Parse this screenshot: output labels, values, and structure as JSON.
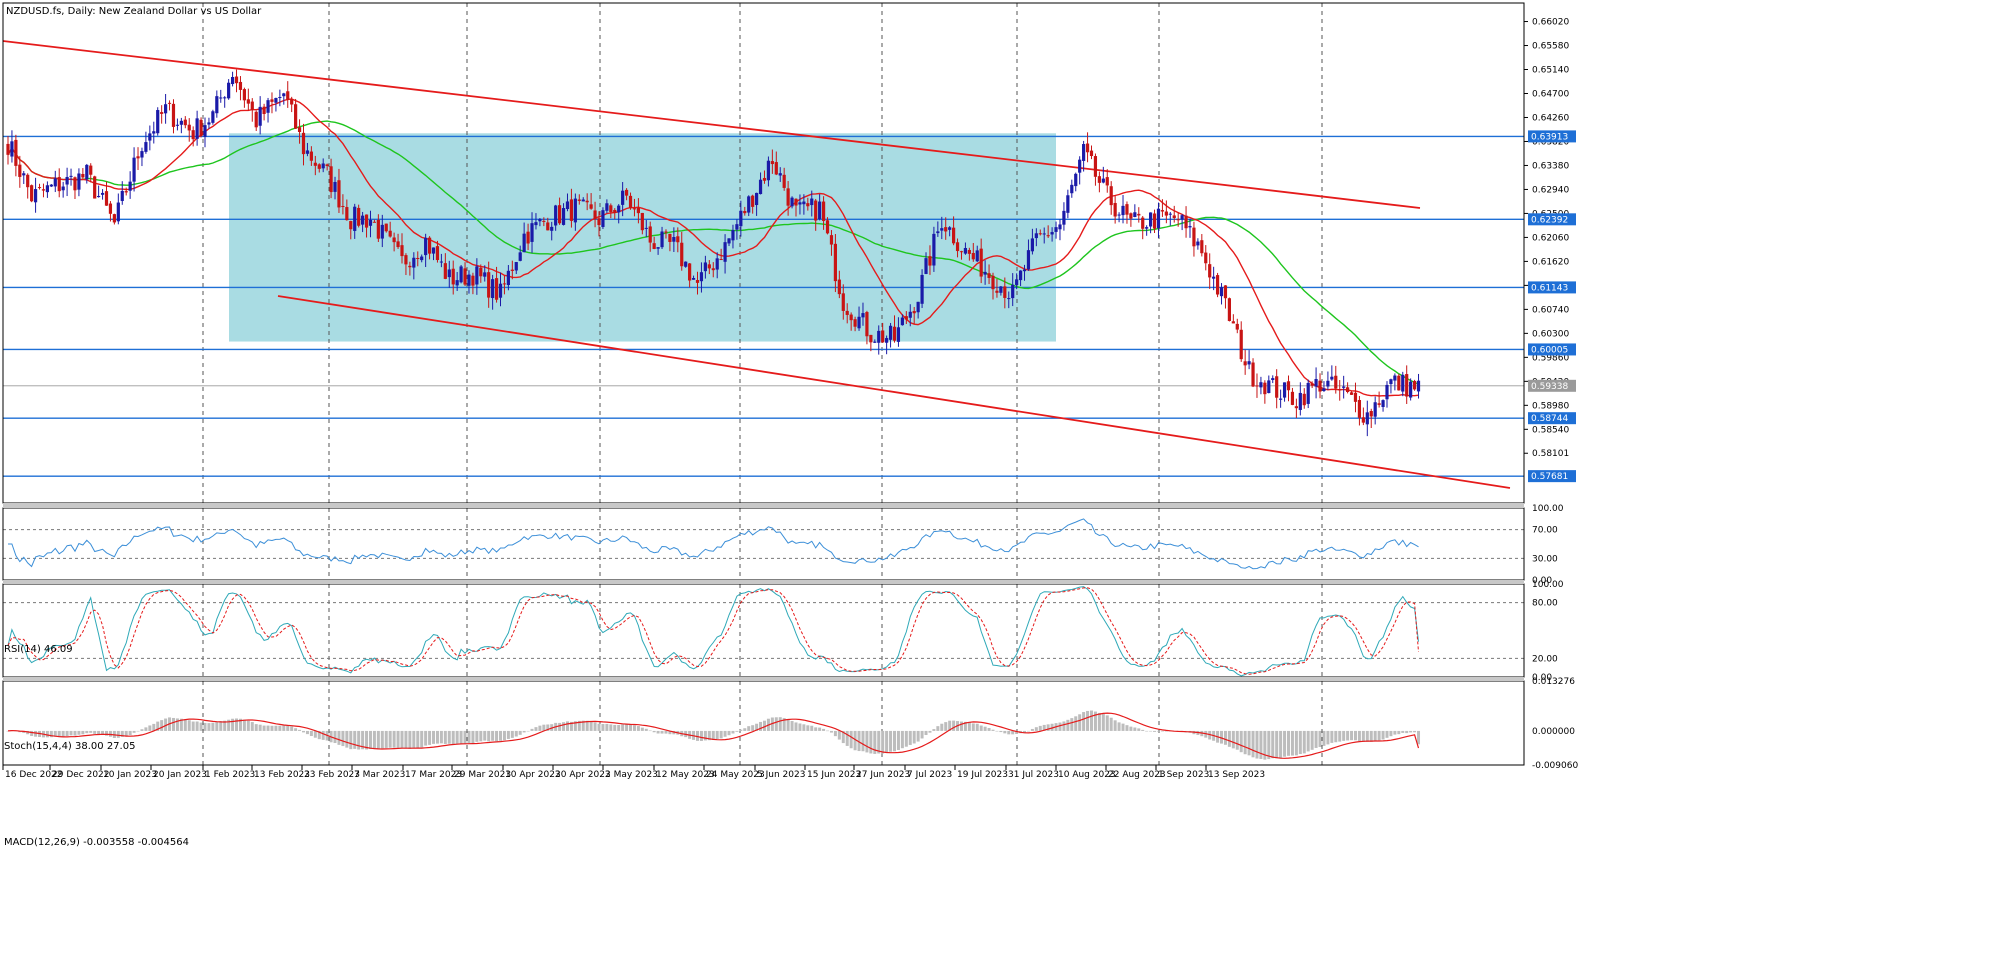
{
  "symbol_label": "NZDUSD.fs, Daily:  New Zealand Dollar vs US Dollar",
  "colors": {
    "bull": "#1a1aa8",
    "bear": "#c81414",
    "ma_fast": "#e51b1b",
    "ma_slow": "#1ec51e",
    "channel": "#e51b1b",
    "hline": "#1e6fd6",
    "box": "#a9dce3",
    "rsi": "#3c8fd8",
    "stoch_main": "#2fa9b8",
    "stoch_signal": "#e51b1b",
    "macd_hist": "#bdbdbd",
    "macd_signal": "#e51b1b"
  },
  "chart_data": [
    {
      "type": "candlestick",
      "title": "NZDUSD.fs, Daily:  New Zealand Dollar vs US Dollar",
      "ylim": [
        0.5728,
        0.6636
      ],
      "y_ticks": [
        "0.66020",
        "0.65580",
        "0.65140",
        "0.64700",
        "0.64260",
        "0.63820",
        "0.63380",
        "0.62940",
        "0.62500",
        "0.62060",
        "0.61620",
        "0.61180",
        "0.60740",
        "0.60300",
        "0.59860",
        "0.59420",
        "0.58980",
        "0.58540",
        "0.58101"
      ],
      "x_ticks": [
        "16 Dec 2022",
        "29 Dec 2022",
        "10 Jan 2023",
        "20 Jan 2023",
        "1 Feb 2023",
        "13 Feb 2023",
        "23 Feb 2023",
        "7 Mar 2023",
        "17 Mar 2023",
        "29 Mar 2023",
        "10 Apr 2023",
        "20 Apr 2023",
        "2 May 2023",
        "12 May 2023",
        "24 May 2023",
        "5 Jun 2023",
        "15 Jun 2023",
        "27 Jun 2023",
        "7 Jul 2023",
        "19 Jul 2023",
        "31 Jul 2023",
        "10 Aug 2023",
        "22 Aug 2023",
        "1 Sep 2023",
        "13 Sep 2023"
      ],
      "close_key": [
        [
          0,
          0.638
        ],
        [
          6,
          0.628
        ],
        [
          12,
          0.63
        ],
        [
          20,
          0.632
        ],
        [
          27,
          0.623
        ],
        [
          34,
          0.638
        ],
        [
          40,
          0.644
        ],
        [
          47,
          0.64
        ],
        [
          52,
          0.643
        ],
        [
          57,
          0.651
        ],
        [
          63,
          0.642
        ],
        [
          70,
          0.647
        ],
        [
          75,
          0.637
        ],
        [
          81,
          0.632
        ],
        [
          87,
          0.624
        ],
        [
          92,
          0.624
        ],
        [
          100,
          0.616
        ],
        [
          106,
          0.62
        ],
        [
          112,
          0.613
        ],
        [
          118,
          0.614
        ],
        [
          125,
          0.61
        ],
        [
          131,
          0.621
        ],
        [
          137,
          0.624
        ],
        [
          144,
          0.626
        ],
        [
          150,
          0.624
        ],
        [
          157,
          0.628
        ],
        [
          163,
          0.62
        ],
        [
          169,
          0.619
        ],
        [
          175,
          0.612
        ],
        [
          182,
          0.619
        ],
        [
          188,
          0.627
        ],
        [
          194,
          0.635
        ],
        [
          200,
          0.625
        ],
        [
          206,
          0.626
        ],
        [
          212,
          0.609
        ],
        [
          219,
          0.603
        ],
        [
          225,
          0.602
        ],
        [
          231,
          0.61
        ],
        [
          237,
          0.624
        ],
        [
          243,
          0.618
        ],
        [
          249,
          0.614
        ],
        [
          255,
          0.61
        ],
        [
          261,
          0.62
        ],
        [
          267,
          0.623
        ],
        [
          273,
          0.636
        ],
        [
          279,
          0.628
        ],
        [
          285,
          0.623
        ],
        [
          291,
          0.624
        ],
        [
          297,
          0.624
        ],
        [
          303,
          0.618
        ],
        [
          309,
          0.608
        ],
        [
          315,
          0.596
        ],
        [
          321,
          0.593
        ],
        [
          327,
          0.591
        ],
        [
          333,
          0.594
        ],
        [
          339,
          0.592
        ],
        [
          345,
          0.588
        ],
        [
          351,
          0.594
        ],
        [
          358,
          0.593
        ]
      ],
      "horizontal_levels": [
        "0.63913",
        "0.62392",
        "0.61143",
        "0.60005",
        "0.59338",
        "0.58744",
        "0.57681"
      ],
      "current_price": "0.59338",
      "moving_averages": [
        {
          "period": 20
        },
        {
          "period": 50
        }
      ],
      "channel_lines": 2,
      "consolidation_box": {
        "from": "1 Feb 2023",
        "to": "10 Aug 2023",
        "price_top": 0.6397,
        "price_bottom": 0.6015
      }
    },
    {
      "type": "line",
      "label": "RSI(14) 46.09",
      "ylim": [
        0,
        100
      ],
      "y_ticks": [
        "100.00",
        "70.00",
        "30.00",
        "0.00"
      ],
      "levels": [
        70,
        30
      ],
      "last_value": 46.09
    },
    {
      "type": "line",
      "label": "Stoch(15,4,4) 38.00 27.05",
      "ylim": [
        0,
        100
      ],
      "y_ticks": [
        "100.00",
        "80.00",
        "20.00",
        "0.00"
      ],
      "levels": [
        80,
        20
      ],
      "last_main": 38.0,
      "last_signal": 27.05
    },
    {
      "type": "bar",
      "label": "MACD(12,26,9) -0.003558 -0.004564",
      "ylim": [
        -0.00906,
        0.013276
      ],
      "y_ticks": [
        "0.013276",
        "0.000000",
        "-0.009060"
      ],
      "last_main": -0.003558,
      "last_signal": -0.004564
    }
  ]
}
